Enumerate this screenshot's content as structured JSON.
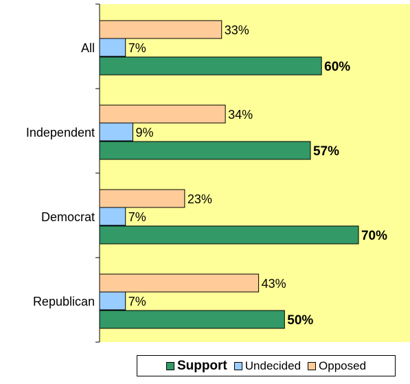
{
  "chart_data": {
    "type": "bar",
    "orientation": "horizontal",
    "categories": [
      "All",
      "Independent",
      "Democrat",
      "Republican"
    ],
    "series": [
      {
        "name": "Opposed",
        "values": [
          33,
          34,
          23,
          43
        ],
        "labels": [
          "33%",
          "34%",
          "23%",
          "43%"
        ],
        "color": "#FFCC99"
      },
      {
        "name": "Undecided",
        "values": [
          7,
          9,
          7,
          7
        ],
        "labels": [
          "7%",
          "9%",
          "7%",
          "7%"
        ],
        "color": "#99CCFF"
      },
      {
        "name": "Support",
        "values": [
          60,
          57,
          70,
          50
        ],
        "labels": [
          "60%",
          "57%",
          "70%",
          "50%"
        ],
        "color": "#339966",
        "bold": true
      }
    ],
    "xlim": [
      0,
      80
    ],
    "plot_background": "#FFFF99",
    "legend": {
      "placement": "bottom",
      "items": [
        {
          "label": "Support",
          "color": "#339966",
          "bold": true
        },
        {
          "label": "Undecided",
          "color": "#99CCFF",
          "bold": false
        },
        {
          "label": "Opposed",
          "color": "#FFCC99",
          "bold": false
        }
      ]
    }
  }
}
